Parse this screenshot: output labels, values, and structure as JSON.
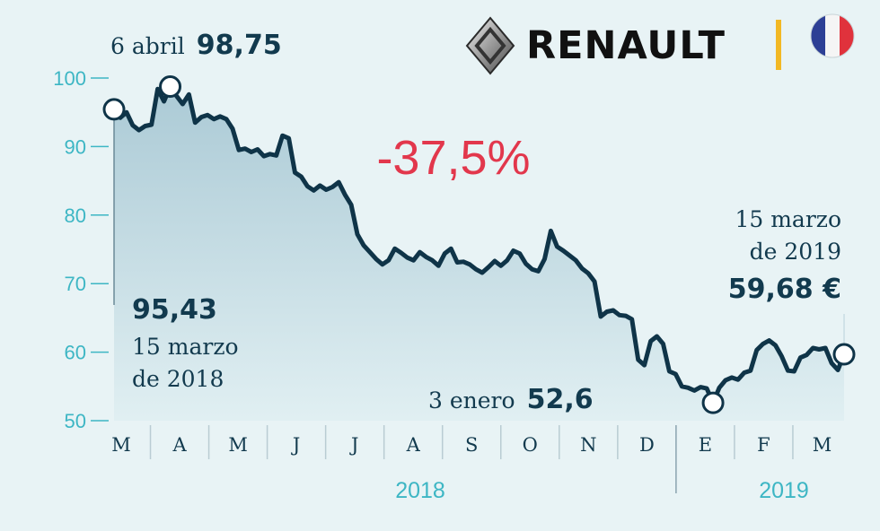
{
  "brand": {
    "name": "RENAULT",
    "logo_icon": "renault-diamond-logo",
    "flag_icon": "france-flag-icon",
    "accent_color": "#f2b824"
  },
  "colors": {
    "background": "#e8f3f5",
    "line": "#0f3448",
    "axis_accent": "#3db6c4",
    "change": "#e2374c"
  },
  "change_label": "-37,5%",
  "annotations": {
    "max": {
      "date_label": "6 abril",
      "value_label": "98,75"
    },
    "start": {
      "value_label": "95,43",
      "date_line1": "15 marzo",
      "date_line2": "de 2018"
    },
    "min": {
      "date_label": "3 enero",
      "value_label": "52,6"
    },
    "end": {
      "date_line1": "15 marzo",
      "date_line2": "de 2019",
      "value_label": "59,68 €"
    }
  },
  "chart_data": {
    "type": "area",
    "title": "",
    "xlabel": "",
    "ylabel": "",
    "ylim": [
      50,
      100
    ],
    "yticks": [
      "100",
      "90",
      "80",
      "70",
      "60",
      "50"
    ],
    "month_labels": [
      "M",
      "A",
      "M",
      "J",
      "J",
      "A",
      "S",
      "O",
      "N",
      "D",
      "E",
      "F",
      "M"
    ],
    "year_labels": [
      "2018",
      "2019"
    ],
    "grid": false,
    "series": [
      {
        "values": [
          95.43,
          94.2,
          95.0,
          93.1,
          92.4,
          93.0,
          93.2,
          98.4,
          96.6,
          98.75,
          97.4,
          96.2,
          97.6,
          93.5,
          94.3,
          94.6,
          94.0,
          94.4,
          94.0,
          92.6,
          89.5,
          89.7,
          89.2,
          89.6,
          88.6,
          88.9,
          88.7,
          91.6,
          91.2,
          86.2,
          85.6,
          84.2,
          83.6,
          84.3,
          83.7,
          84.1,
          84.8,
          83.0,
          81.5,
          77.2,
          75.6,
          74.6,
          73.6,
          72.8,
          73.4,
          75.1,
          74.5,
          73.8,
          73.4,
          74.6,
          73.9,
          73.4,
          72.6,
          74.4,
          75.1,
          73.1,
          73.2,
          72.8,
          72.1,
          71.6,
          72.4,
          73.3,
          72.6,
          73.4,
          74.8,
          74.4,
          72.9,
          72.1,
          71.8,
          73.6,
          77.7,
          75.4,
          74.8,
          74.1,
          73.4,
          72.2,
          71.5,
          70.3,
          65.2,
          65.9,
          66.1,
          65.4,
          65.3,
          64.8,
          58.9,
          58.1,
          61.6,
          62.3,
          61.2,
          57.2,
          56.8,
          55.0,
          54.8,
          54.4,
          54.9,
          54.7,
          52.6,
          54.8,
          55.9,
          56.3,
          56.0,
          57.0,
          57.3,
          60.3,
          61.2,
          61.7,
          61.0,
          59.4,
          57.3,
          57.2,
          59.2,
          59.6,
          60.6,
          60.4,
          60.6,
          58.4,
          57.4,
          59.68
        ]
      }
    ],
    "markers": [
      {
        "index": 0,
        "value": 95.43
      },
      {
        "index": 9,
        "value": 98.75
      },
      {
        "index": 96,
        "value": 52.6
      },
      {
        "index": 117,
        "value": 59.68
      }
    ]
  }
}
